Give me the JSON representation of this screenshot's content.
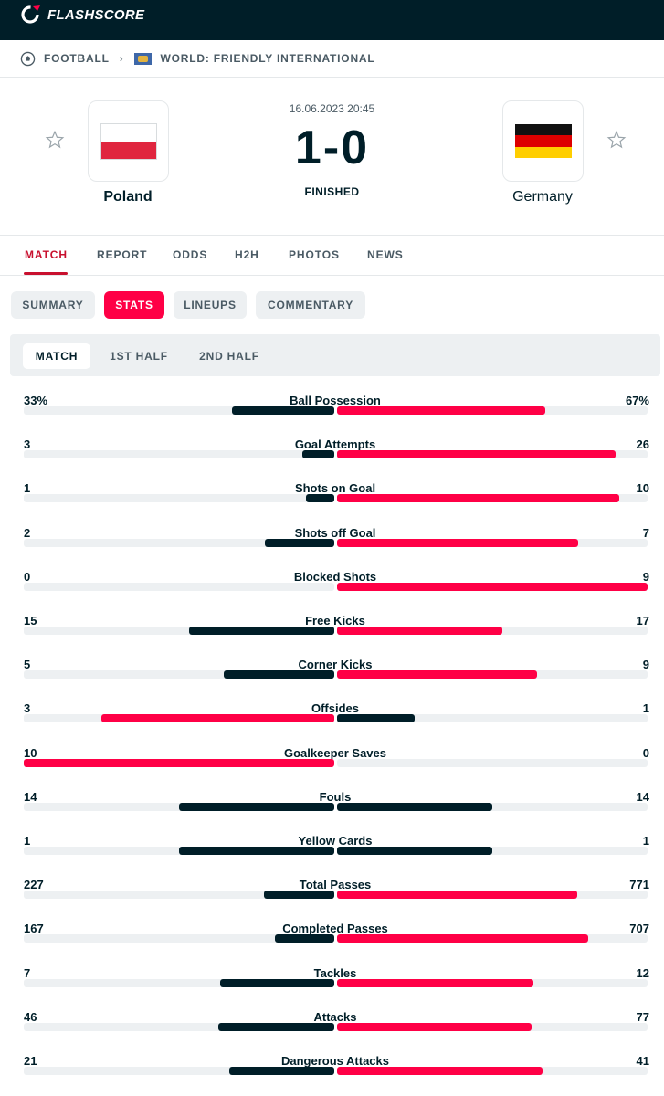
{
  "app": {
    "brand": "FLASHSCORE"
  },
  "breadcrumb": {
    "sport": "FOOTBALL",
    "competition": "WORLD: FRIENDLY INTERNATIONAL"
  },
  "match": {
    "date": "16.06.2023 20:45",
    "score": "1-0",
    "status": "FINISHED",
    "home": {
      "name": "Poland"
    },
    "away": {
      "name": "Germany"
    }
  },
  "tabs": [
    "MATCH",
    "REPORT",
    "ODDS",
    "H2H",
    "PHOTOS",
    "NEWS"
  ],
  "subtabs": [
    "SUMMARY",
    "STATS",
    "LINEUPS",
    "COMMENTARY"
  ],
  "periods": [
    "MATCH",
    "1ST HALF",
    "2ND HALF"
  ],
  "colors": {
    "accent": "#ff0046",
    "dark": "#001e28",
    "track": "#edf0f2"
  },
  "stats": [
    {
      "label": "Ball Possession",
      "home": "33%",
      "away": "67%"
    },
    {
      "label": "Goal Attempts",
      "home": "3",
      "away": "26"
    },
    {
      "label": "Shots on Goal",
      "home": "1",
      "away": "10"
    },
    {
      "label": "Shots off Goal",
      "home": "2",
      "away": "7"
    },
    {
      "label": "Blocked Shots",
      "home": "0",
      "away": "9"
    },
    {
      "label": "Free Kicks",
      "home": "15",
      "away": "17"
    },
    {
      "label": "Corner Kicks",
      "home": "5",
      "away": "9"
    },
    {
      "label": "Offsides",
      "home": "3",
      "away": "1"
    },
    {
      "label": "Goalkeeper Saves",
      "home": "10",
      "away": "0"
    },
    {
      "label": "Fouls",
      "home": "14",
      "away": "14"
    },
    {
      "label": "Yellow Cards",
      "home": "1",
      "away": "1"
    },
    {
      "label": "Total Passes",
      "home": "227",
      "away": "771"
    },
    {
      "label": "Completed Passes",
      "home": "167",
      "away": "707"
    },
    {
      "label": "Tackles",
      "home": "7",
      "away": "12"
    },
    {
      "label": "Attacks",
      "home": "46",
      "away": "77"
    },
    {
      "label": "Dangerous Attacks",
      "home": "21",
      "away": "41"
    }
  ]
}
